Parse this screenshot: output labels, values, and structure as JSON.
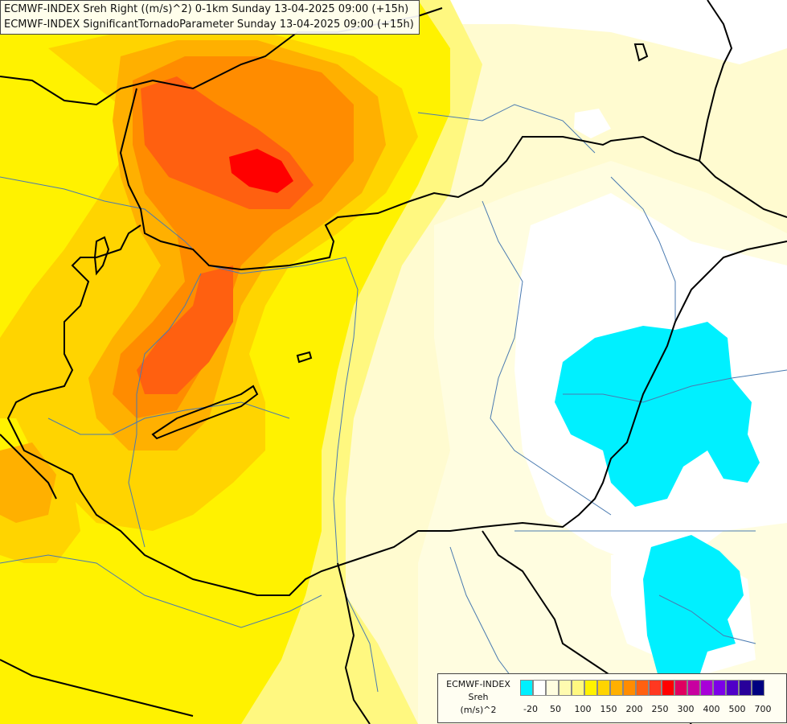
{
  "header": {
    "title_line_1": "ECMWF-INDEX Sreh Right ((m/s)^2) 0-1km Sunday 13-04-2025 09:00 (+15h)",
    "title_line_2": "ECMWF-INDEX SignificantTornadoParameter Sunday 13-04-2025 09:00 (+15h)"
  },
  "legend": {
    "source": "ECMWF-INDEX",
    "variable": "Sreh",
    "unit": "(m/s)^2",
    "colors": [
      "#00f0ff",
      "#ffffff",
      "#fffde0",
      "#fffbb0",
      "#fff880",
      "#fff200",
      "#ffd400",
      "#ffb000",
      "#ff8c00",
      "#ff6010",
      "#ff3820",
      "#ff0000",
      "#e00060",
      "#c800a0",
      "#a800d8",
      "#7c00e8",
      "#5000c8",
      "#28009a",
      "#000080"
    ],
    "tick_labels": [
      "-20",
      "50",
      "100",
      "150",
      "200",
      "250",
      "300",
      "400",
      "500",
      "700"
    ]
  },
  "map": {
    "shading_colors": {
      "background": "#fffbd0",
      "pale": "#fffde0",
      "light": "#fff880",
      "yellow": "#fff200",
      "gold": "#ffd400",
      "orange": "#ffb000",
      "dark_orange": "#ff8c00",
      "red_orange": "#ff6010",
      "red": "#ff0000",
      "cyan": "#00f0ff",
      "white": "#ffffff"
    },
    "line_colors": {
      "border": "#000000",
      "river": "#4a7ab0"
    },
    "layers": [
      "shaded-field",
      "rivers",
      "borders"
    ]
  }
}
